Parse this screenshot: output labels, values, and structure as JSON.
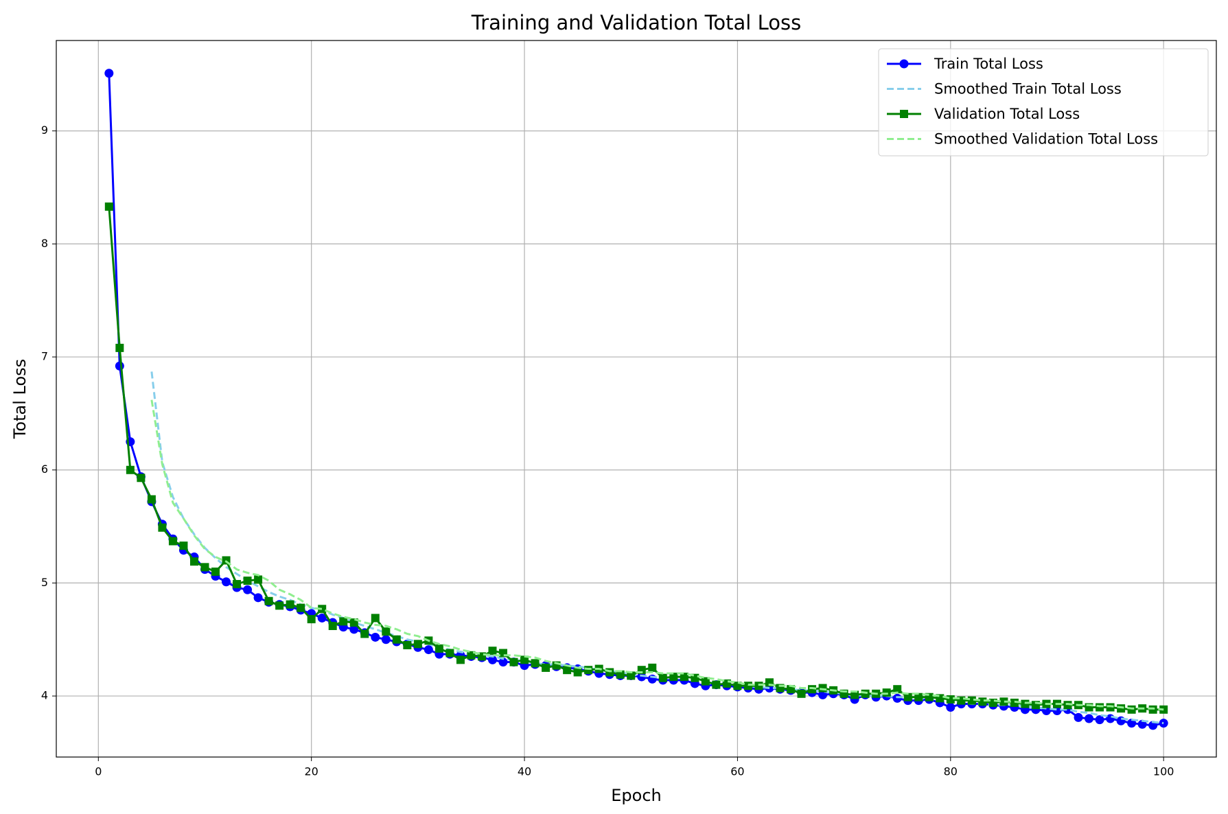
{
  "chart_data": {
    "type": "line",
    "title": "Training and Validation Total Loss",
    "xlabel": "Epoch",
    "ylabel": "Total Loss",
    "x": [
      1,
      2,
      3,
      4,
      5,
      6,
      7,
      8,
      9,
      10,
      11,
      12,
      13,
      14,
      15,
      16,
      17,
      18,
      19,
      20,
      21,
      22,
      23,
      24,
      25,
      26,
      27,
      28,
      29,
      30,
      31,
      32,
      33,
      34,
      35,
      36,
      37,
      38,
      39,
      40,
      41,
      42,
      43,
      44,
      45,
      46,
      47,
      48,
      49,
      50,
      51,
      52,
      53,
      54,
      55,
      56,
      57,
      58,
      59,
      60,
      61,
      62,
      63,
      64,
      65,
      66,
      67,
      68,
      69,
      70,
      71,
      72,
      73,
      74,
      75,
      76,
      77,
      78,
      79,
      80,
      81,
      82,
      83,
      84,
      85,
      86,
      87,
      88,
      89,
      90,
      91,
      92,
      93,
      94,
      95,
      96,
      97,
      98,
      99,
      100
    ],
    "series": [
      {
        "name": "Train Total Loss",
        "color": "#0000ff",
        "marker": "circle",
        "linestyle": "solid",
        "values": [
          9.51,
          6.92,
          6.25,
          5.94,
          5.72,
          5.52,
          5.39,
          5.29,
          5.23,
          5.12,
          5.06,
          5.01,
          4.96,
          4.94,
          4.87,
          4.83,
          4.81,
          4.79,
          4.76,
          4.73,
          4.69,
          4.65,
          4.61,
          4.59,
          4.56,
          4.52,
          4.5,
          4.48,
          4.46,
          4.43,
          4.41,
          4.37,
          4.37,
          4.36,
          4.35,
          4.34,
          4.32,
          4.3,
          4.3,
          4.27,
          4.28,
          4.27,
          4.26,
          4.25,
          4.24,
          4.22,
          4.2,
          4.19,
          4.18,
          4.18,
          4.17,
          4.15,
          4.14,
          4.14,
          4.14,
          4.11,
          4.09,
          4.1,
          4.09,
          4.08,
          4.07,
          4.06,
          4.07,
          4.06,
          4.05,
          4.03,
          4.03,
          4.01,
          4.02,
          4.01,
          3.97,
          4.01,
          3.99,
          4.0,
          3.98,
          3.96,
          3.96,
          3.97,
          3.94,
          3.9,
          3.93,
          3.93,
          3.93,
          3.92,
          3.91,
          3.9,
          3.88,
          3.88,
          3.87,
          3.87,
          3.88,
          3.81,
          3.8,
          3.79,
          3.8,
          3.78,
          3.76,
          3.75,
          3.74,
          3.76
        ]
      },
      {
        "name": "Smoothed Train Total Loss",
        "color": "#87ceeb",
        "marker": "none",
        "linestyle": "dashed",
        "values": [
          null,
          null,
          null,
          null,
          6.87,
          6.07,
          5.76,
          5.57,
          5.43,
          5.31,
          5.22,
          5.14,
          5.08,
          5.02,
          4.97,
          4.92,
          4.88,
          4.85,
          4.81,
          4.78,
          4.76,
          4.72,
          4.69,
          4.65,
          4.62,
          4.59,
          4.56,
          4.53,
          4.5,
          4.48,
          4.46,
          4.43,
          4.41,
          4.39,
          4.37,
          4.36,
          4.35,
          4.33,
          4.32,
          4.31,
          4.29,
          4.28,
          4.28,
          4.27,
          4.26,
          4.25,
          4.23,
          4.22,
          4.21,
          4.19,
          4.18,
          4.17,
          4.16,
          4.16,
          4.15,
          4.14,
          4.12,
          4.12,
          4.11,
          4.09,
          4.09,
          4.08,
          4.07,
          4.07,
          4.06,
          4.05,
          4.05,
          4.04,
          4.03,
          4.02,
          4.01,
          4.0,
          4.0,
          4.0,
          3.99,
          3.99,
          3.98,
          3.97,
          3.96,
          3.95,
          3.94,
          3.93,
          3.93,
          3.92,
          3.92,
          3.92,
          3.91,
          3.9,
          3.89,
          3.88,
          3.88,
          3.86,
          3.85,
          3.83,
          3.82,
          3.8,
          3.79,
          3.78,
          3.77,
          3.76
        ]
      },
      {
        "name": "Validation Total Loss",
        "color": "#008000",
        "marker": "square",
        "linestyle": "solid",
        "values": [
          8.33,
          7.08,
          6.0,
          5.93,
          5.74,
          5.49,
          5.37,
          5.33,
          5.19,
          5.14,
          5.1,
          5.2,
          4.99,
          5.02,
          5.03,
          4.84,
          4.8,
          4.81,
          4.78,
          4.68,
          4.77,
          4.62,
          4.66,
          4.65,
          4.55,
          4.69,
          4.57,
          4.5,
          4.45,
          4.46,
          4.49,
          4.42,
          4.38,
          4.32,
          4.36,
          4.35,
          4.4,
          4.38,
          4.3,
          4.32,
          4.29,
          4.25,
          4.27,
          4.23,
          4.21,
          4.23,
          4.24,
          4.21,
          4.19,
          4.18,
          4.23,
          4.25,
          4.16,
          4.17,
          4.17,
          4.16,
          4.13,
          4.1,
          4.11,
          4.09,
          4.09,
          4.09,
          4.12,
          4.07,
          4.06,
          4.02,
          4.06,
          4.07,
          4.05,
          4.02,
          4.01,
          4.02,
          4.02,
          4.03,
          4.06,
          3.99,
          3.99,
          3.99,
          3.98,
          3.97,
          3.96,
          3.96,
          3.95,
          3.94,
          3.95,
          3.94,
          3.93,
          3.92,
          3.93,
          3.93,
          3.92,
          3.92,
          3.9,
          3.9,
          3.9,
          3.89,
          3.88,
          3.89,
          3.88,
          3.88
        ]
      },
      {
        "name": "Smoothed Validation Total Loss",
        "color": "#90ee90",
        "marker": "none",
        "linestyle": "dashed",
        "values": [
          null,
          null,
          null,
          null,
          6.62,
          6.05,
          5.71,
          5.57,
          5.42,
          5.3,
          5.23,
          5.19,
          5.12,
          5.09,
          5.07,
          5.02,
          4.94,
          4.9,
          4.85,
          4.78,
          4.77,
          4.73,
          4.7,
          4.68,
          4.65,
          4.63,
          4.62,
          4.59,
          4.55,
          4.53,
          4.49,
          4.46,
          4.44,
          4.41,
          4.39,
          4.37,
          4.36,
          4.36,
          4.36,
          4.35,
          4.34,
          4.31,
          4.29,
          4.27,
          4.25,
          4.24,
          4.24,
          4.22,
          4.22,
          4.21,
          4.21,
          4.21,
          4.2,
          4.2,
          4.2,
          4.18,
          4.16,
          4.15,
          4.13,
          4.12,
          4.1,
          4.1,
          4.1,
          4.09,
          4.09,
          4.07,
          4.07,
          4.06,
          4.05,
          4.04,
          4.04,
          4.03,
          4.02,
          4.02,
          4.03,
          4.02,
          4.02,
          4.01,
          4.0,
          3.98,
          3.98,
          3.97,
          3.96,
          3.96,
          3.95,
          3.95,
          3.94,
          3.94,
          3.93,
          3.93,
          3.93,
          3.92,
          3.92,
          3.91,
          3.91,
          3.9,
          3.89,
          3.89,
          3.89,
          3.88
        ]
      }
    ],
    "xlim": [
      -3.95,
      104.95
    ],
    "ylim": [
      3.46,
      9.8
    ],
    "xticks": [
      0,
      20,
      40,
      60,
      80,
      100
    ],
    "yticks": [
      4,
      5,
      6,
      7,
      8,
      9
    ],
    "grid": true,
    "legend": "upper right"
  }
}
